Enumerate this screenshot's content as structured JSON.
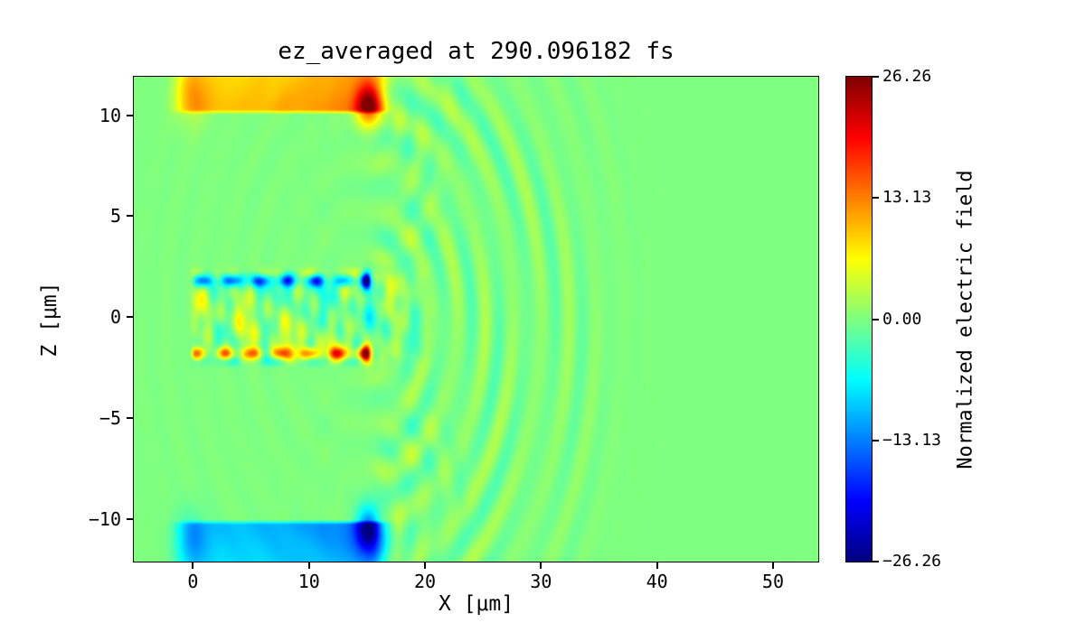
{
  "chart_data": {
    "type": "heatmap",
    "title": "ez_averaged at 290.096182 fs",
    "xlabel": "X [μm]",
    "ylabel": "Z [μm]",
    "colorbar_label": "Normalized electric field",
    "colormap": "jet",
    "xlim": [
      -5.1,
      53.9
    ],
    "ylim": [
      -12.1,
      11.9
    ],
    "clim": [
      -26.26,
      26.26
    ],
    "xticks": [
      0,
      10,
      20,
      30,
      40,
      50
    ],
    "xtick_labels": [
      "0",
      "10",
      "20",
      "30",
      "40",
      "50"
    ],
    "yticks": [
      10,
      5,
      0,
      -5,
      -10
    ],
    "ytick_labels": [
      "10",
      "5",
      "0",
      "−5",
      "−10"
    ],
    "colorbar_ticks": [
      26.26,
      13.13,
      0,
      -13.13,
      -26.26
    ],
    "colorbar_tick_labels": [
      "26.26",
      "13.13",
      "0.00",
      "−13.13",
      "−26.26"
    ],
    "layout": {
      "grid": false,
      "legend": false,
      "background_value": 0
    },
    "field_features": {
      "slabs": [
        {
          "name": "top-emitter",
          "x0": 0,
          "x1": 15,
          "z_face": 10.1,
          "direction": 1,
          "base_amplitude": 9.5,
          "edge_amplitude": 14,
          "tip": {
            "x": 15.1,
            "z": 10.45,
            "amplitude": 15,
            "radius": 1.1
          },
          "left_cap": {
            "x": -0.2,
            "z": 11.0,
            "amplitude": 4,
            "radius": 2.2
          }
        },
        {
          "name": "bottom-emitter",
          "x0": 0,
          "x1": 15,
          "z_face": -10.1,
          "direction": -1,
          "base_amplitude": -9.5,
          "edge_amplitude": -14,
          "tip": {
            "x": 15.1,
            "z": -10.45,
            "amplitude": -15,
            "radius": 1.1
          },
          "left_cap": {
            "x": -0.2,
            "z": -11.0,
            "amplitude": -4,
            "radius": 2.2
          }
        }
      ],
      "wires": [
        {
          "name": "upper-wire",
          "z": 1.8,
          "x0": 0,
          "x1": 15,
          "amplitude": -13,
          "width": 0.22,
          "tip_amplitude": -16,
          "counter_lobe": 4
        },
        {
          "name": "lower-wire",
          "z": -1.8,
          "x0": 0,
          "x1": 15,
          "amplitude": 13,
          "width": 0.22,
          "tip_amplitude": 16,
          "counter_lobe": -4
        }
      ],
      "turbulence": {
        "x0": -0.5,
        "x1": 16,
        "z0": -2.6,
        "z1": 2.6,
        "amplitude": 6.5
      },
      "radiation": [
        {
          "cx": 15,
          "cz": 0,
          "amplitude": 2.6,
          "wavelength": 2.4,
          "r_min": 2,
          "r_max": 26
        },
        {
          "cx": 15,
          "cz": 10,
          "amplitude": 1.6,
          "wavelength": 2.2,
          "r_min": 1,
          "r_max": 11
        },
        {
          "cx": 15,
          "cz": -10,
          "amplitude": 1.6,
          "wavelength": 2.2,
          "r_min": 1,
          "r_max": 11
        }
      ]
    }
  },
  "figure": {
    "background": "#ffffff",
    "frame_color": "#000000",
    "text_color": "#000000"
  }
}
